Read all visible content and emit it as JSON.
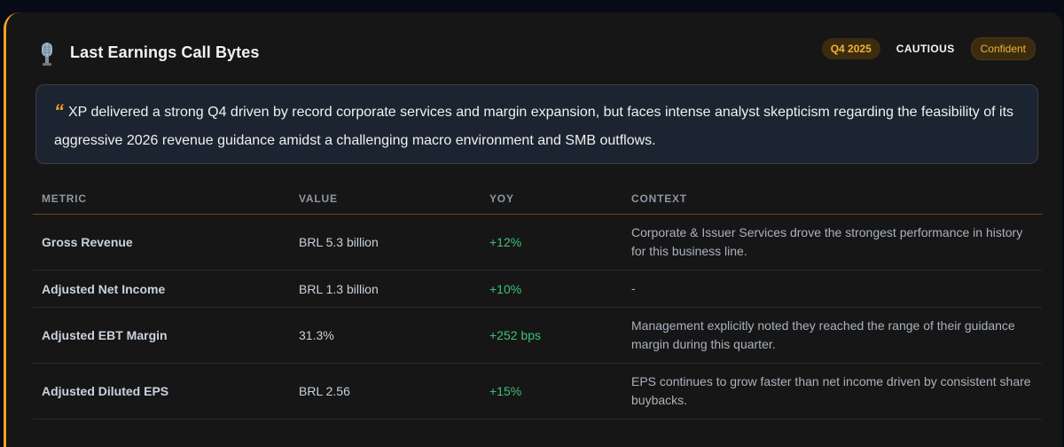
{
  "header": {
    "icon": "microphone-icon",
    "title": "Last Earnings Call Bytes",
    "badges": {
      "quarter": "Q4 2025",
      "sentiment": "CAUTIOUS",
      "tone": "Confident"
    }
  },
  "summary": {
    "quote_mark": "“",
    "text": "XP delivered a strong Q4 driven by record corporate services and margin expansion, but faces intense analyst skepticism regarding the feasibility of its aggressive 2026 revenue guidance amidst a challenging macro environment and SMB outflows."
  },
  "table": {
    "headers": {
      "metric": "METRIC",
      "value": "VALUE",
      "yoy": "YOY",
      "context": "CONTEXT"
    },
    "rows": [
      {
        "metric": "Gross Revenue",
        "value": "BRL 5.3 billion",
        "yoy": "+12%",
        "context": "Corporate & Issuer Services drove the strongest performance in history for this business line."
      },
      {
        "metric": "Adjusted Net Income",
        "value": "BRL 1.3 billion",
        "yoy": "+10%",
        "context": "-"
      },
      {
        "metric": "Adjusted EBT Margin",
        "value": "31.3%",
        "yoy": "+252 bps",
        "context": "Management explicitly noted they reached the range of their guidance margin during this quarter."
      },
      {
        "metric": "Adjusted Diluted EPS",
        "value": "BRL 2.56",
        "yoy": "+15%",
        "context": "EPS continues to grow faster than net income driven by consistent share buybacks."
      }
    ]
  },
  "colors": {
    "accent": "#f2a31b",
    "positive": "#3ec07a",
    "card_bg": "#161616",
    "summary_bg": "#1b2430"
  }
}
